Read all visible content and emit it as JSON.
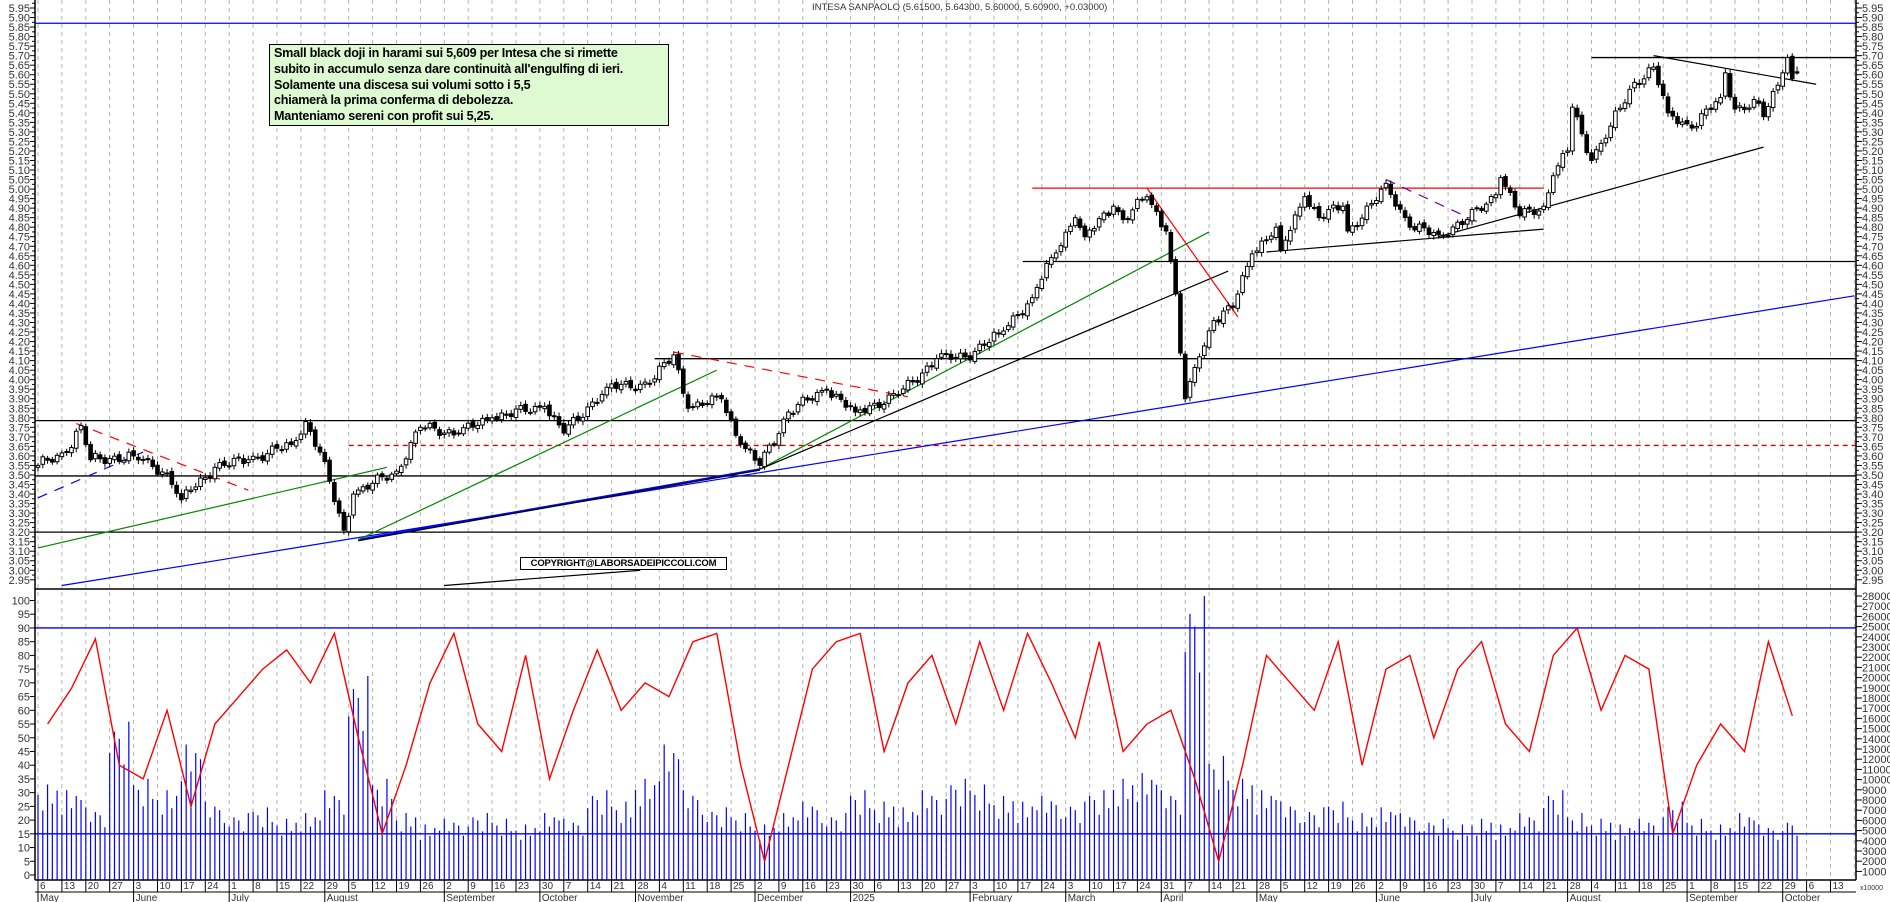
{
  "title": "INTESA SANPAOLO (5.61500, 5.64300, 5.60000, 5.60900, +0.03000)",
  "annotation": {
    "lines": [
      "Small black doji in harami sui 5,609 per Intesa che si rimette",
      "subito in accumulo senza dare continuità all'engulfing di ieri.",
      "Solamente una discesa sui volumi sotto i 5,5",
      "chiamerà la prima conferma di debolezza.",
      "Manteniamo sereni con profit sui 5,25."
    ],
    "background": "#ddfad3"
  },
  "copyright": "COPYRIGHT@LABORSADEIPICCOLI.COM",
  "volume_unit_label": "x10000",
  "chart_data": [
    {
      "type": "candlestick",
      "instrument": "INTESA SANPAOLO",
      "last_bar": {
        "open": 5.615,
        "high": 5.643,
        "low": 5.6,
        "close": 5.609,
        "change": 0.03
      },
      "price_axis": {
        "min": 2.95,
        "max": 5.95,
        "step": 0.05,
        "sides": [
          "left",
          "right"
        ]
      },
      "grid": "weekly vertical dashed",
      "up_color": "#ffffff",
      "down_color": "#000000",
      "close_keypoints": [
        [
          "2024-05-06",
          3.55
        ],
        [
          "2024-05-14",
          3.62
        ],
        [
          "2024-05-17",
          3.76
        ],
        [
          "2024-05-21",
          3.58
        ],
        [
          "2024-06-03",
          3.6
        ],
        [
          "2024-06-12",
          3.51
        ],
        [
          "2024-06-17",
          3.37
        ],
        [
          "2024-06-19",
          3.42
        ],
        [
          "2024-06-26",
          3.54
        ],
        [
          "2024-07-05",
          3.58
        ],
        [
          "2024-07-18",
          3.66
        ],
        [
          "2024-07-23",
          3.78
        ],
        [
          "2024-07-26",
          3.62
        ],
        [
          "2024-08-02",
          3.21
        ],
        [
          "2024-08-06",
          3.4
        ],
        [
          "2024-08-19",
          3.52
        ],
        [
          "2024-08-26",
          3.75
        ],
        [
          "2024-09-05",
          3.72
        ],
        [
          "2024-09-16",
          3.8
        ],
        [
          "2024-10-01",
          3.86
        ],
        [
          "2024-10-07",
          3.72
        ],
        [
          "2024-10-18",
          3.96
        ],
        [
          "2024-10-31",
          3.98
        ],
        [
          "2024-11-07",
          4.13
        ],
        [
          "2024-11-12",
          3.85
        ],
        [
          "2024-11-21",
          3.9
        ],
        [
          "2024-11-27",
          3.66
        ],
        [
          "2024-12-03",
          3.55
        ],
        [
          "2024-12-11",
          3.83
        ],
        [
          "2024-12-23",
          3.95
        ],
        [
          "2024-12-31",
          3.83
        ],
        [
          "2025-01-13",
          3.92
        ],
        [
          "2025-01-23",
          4.11
        ],
        [
          "2025-01-31",
          4.12
        ],
        [
          "2025-02-11",
          4.24
        ],
        [
          "2025-02-20",
          4.43
        ],
        [
          "2025-02-26",
          4.64
        ],
        [
          "2025-03-05",
          4.85
        ],
        [
          "2025-03-07",
          4.75
        ],
        [
          "2025-03-17",
          4.91
        ],
        [
          "2025-03-19",
          4.84
        ],
        [
          "2025-03-26",
          4.96
        ],
        [
          "2025-04-01",
          4.78
        ],
        [
          "2025-04-03",
          4.45
        ],
        [
          "2025-04-04",
          4.14
        ],
        [
          "2025-04-07",
          3.9
        ],
        [
          "2025-04-08",
          3.99
        ],
        [
          "2025-04-10",
          4.12
        ],
        [
          "2025-04-15",
          4.31
        ],
        [
          "2025-04-21",
          4.38
        ],
        [
          "2025-04-25",
          4.66
        ],
        [
          "2025-05-02",
          4.8
        ],
        [
          "2025-05-05",
          4.68
        ],
        [
          "2025-05-12",
          4.96
        ],
        [
          "2025-05-15",
          4.85
        ],
        [
          "2025-05-22",
          4.91
        ],
        [
          "2025-05-23",
          4.78
        ],
        [
          "2025-06-02",
          4.94
        ],
        [
          "2025-06-04",
          5.03
        ],
        [
          "2025-06-11",
          4.8
        ],
        [
          "2025-06-19",
          4.76
        ],
        [
          "2025-06-27",
          4.84
        ],
        [
          "2025-07-07",
          4.97
        ],
        [
          "2025-07-08",
          5.06
        ],
        [
          "2025-07-14",
          4.86
        ],
        [
          "2025-07-21",
          4.91
        ],
        [
          "2025-07-23",
          5.07
        ],
        [
          "2025-07-28",
          5.2
        ],
        [
          "2025-07-29",
          5.43
        ],
        [
          "2025-07-31",
          5.29
        ],
        [
          "2025-08-04",
          5.15
        ],
        [
          "2025-08-08",
          5.33
        ],
        [
          "2025-08-15",
          5.56
        ],
        [
          "2025-08-21",
          5.64
        ],
        [
          "2025-08-26",
          5.4
        ],
        [
          "2025-09-02",
          5.32
        ],
        [
          "2025-09-10",
          5.48
        ],
        [
          "2025-09-11",
          5.61
        ],
        [
          "2025-09-15",
          5.42
        ],
        [
          "2025-09-22",
          5.45
        ],
        [
          "2025-09-23",
          5.38
        ],
        [
          "2025-09-29",
          5.61
        ],
        [
          "2025-09-30",
          5.69
        ],
        [
          "2025-10-01",
          5.58
        ],
        [
          "2025-10-02",
          5.609
        ]
      ],
      "horizontal_lines": [
        {
          "price": 5.87,
          "color": "#0000ff"
        },
        {
          "price": 5.69,
          "color": "#000000",
          "from": "2025-08-04"
        },
        {
          "price": 5.005,
          "color": "#ff0000",
          "from": "2025-02-20",
          "to": "2025-07-21"
        },
        {
          "price": 4.62,
          "color": "#000000",
          "from": "2025-02-18"
        },
        {
          "price": 4.11,
          "color": "#000000",
          "from": "2024-11-01"
        },
        {
          "price": 3.785,
          "color": "#000000"
        },
        {
          "price": 3.655,
          "color": "#dd0000",
          "dash": true,
          "from": "2024-08-05"
        },
        {
          "price": 3.495,
          "color": "#000000"
        },
        {
          "price": 3.2,
          "color": "#000000"
        }
      ],
      "trend_lines": [
        {
          "color": "#0000ff",
          "from": [
            "2024-05-13",
            2.92
          ],
          "to": [
            "2025-10-20",
            4.44
          ]
        },
        {
          "color": "#0000ff",
          "from": [
            "2024-08-07",
            3.16
          ],
          "to": [
            "2024-12-03",
            3.53
          ],
          "width": 2
        },
        {
          "color": "#000000",
          "from": [
            "2024-08-07",
            3.155
          ],
          "to": [
            "2024-12-03",
            3.525
          ]
        },
        {
          "color": "#008800",
          "from": [
            "2024-05-06",
            3.117
          ],
          "to": [
            "2024-08-15",
            3.54
          ]
        },
        {
          "color": "#008800",
          "from": [
            "2024-08-07",
            3.16
          ],
          "to": [
            "2024-11-20",
            4.05
          ]
        },
        {
          "color": "#008800",
          "from": [
            "2024-12-03",
            3.53
          ],
          "to": [
            "2025-04-14",
            4.775
          ]
        },
        {
          "color": "#000000",
          "from": [
            "2024-12-03",
            3.53
          ],
          "to": [
            "2025-04-18",
            4.57
          ]
        },
        {
          "color": "#000000",
          "from": [
            "2024-09-02",
            2.92
          ],
          "to": [
            "2024-10-29",
            3.0
          ]
        },
        {
          "color": "#ff0000",
          "dash": true,
          "from": [
            "2024-05-16",
            3.77
          ],
          "to": [
            "2024-07-05",
            3.42
          ]
        },
        {
          "color": "#0000ff",
          "dash": true,
          "from": [
            "2024-05-06",
            3.38
          ],
          "to": [
            "2024-06-05",
            3.62
          ]
        },
        {
          "color": "#ff0000",
          "dash": true,
          "from": [
            "2024-11-07",
            4.145
          ],
          "to": [
            "2025-01-15",
            3.91
          ]
        },
        {
          "color": "#ff0000",
          "from": [
            "2025-03-26",
            5.005
          ],
          "to": [
            "2025-04-22",
            4.33
          ]
        },
        {
          "color": "#000000",
          "from": [
            "2025-04-30",
            4.67
          ],
          "to": [
            "2025-07-21",
            4.79
          ]
        },
        {
          "color": "#660099",
          "dash": true,
          "from": [
            "2025-06-04",
            5.05
          ],
          "to": [
            "2025-07-01",
            4.83
          ]
        },
        {
          "color": "#000000",
          "from": [
            "2025-06-19",
            4.75
          ],
          "to": [
            "2025-09-23",
            5.22
          ]
        },
        {
          "color": "#000000",
          "from": [
            "2025-08-21",
            5.7
          ],
          "to": [
            "2025-10-08",
            5.55
          ]
        }
      ]
    },
    {
      "type": "line+bar",
      "oscillator": {
        "axis": {
          "min": 0,
          "max": 100,
          "step": 5,
          "side": "left"
        },
        "color": "#ff0000",
        "levels": [
          {
            "value": 90,
            "color": "#0000ff"
          },
          {
            "value": 15,
            "color": "#0000ff"
          }
        ],
        "weekly_start": "2024-05-06",
        "weekly_values": [
          55,
          68,
          86,
          40,
          35,
          60,
          25,
          55,
          65,
          75,
          82,
          70,
          88,
          50,
          15,
          40,
          70,
          88,
          55,
          45,
          80,
          35,
          60,
          82,
          60,
          70,
          65,
          85,
          88,
          40,
          5,
          40,
          75,
          85,
          88,
          45,
          70,
          80,
          55,
          85,
          60,
          88,
          70,
          50,
          85,
          45,
          55,
          60,
          35,
          5,
          40,
          80,
          70,
          60,
          85,
          40,
          75,
          80,
          50,
          75,
          85,
          55,
          45,
          80,
          90,
          60,
          80,
          75,
          15,
          40,
          55,
          45,
          85,
          58
        ]
      },
      "volume": {
        "axis": {
          "min": 1000,
          "max": 28000,
          "step": 1000,
          "side": "right"
        },
        "color": "#0000ff",
        "weekly_start": "2024-05-06",
        "weekly_values": [
          8500,
          8000,
          6500,
          14000,
          9000,
          8000,
          12000,
          7000,
          6000,
          6500,
          5500,
          6000,
          8000,
          18000,
          9000,
          6000,
          5000,
          5500,
          6000,
          5500,
          5000,
          6000,
          5500,
          8000,
          7000,
          9000,
          12000,
          8000,
          6500,
          6000,
          5000,
          6000,
          7000,
          6000,
          8000,
          7000,
          6500,
          8000,
          9000,
          8500,
          7500,
          7000,
          7500,
          7000,
          8000,
          9000,
          9500,
          8000,
          25000,
          11000,
          9000,
          8000,
          7000,
          6500,
          7000,
          6000,
          6500,
          6000,
          5500,
          5000,
          5500,
          5000,
          6000,
          8000,
          6000,
          5500,
          5000,
          5500,
          7000,
          5500,
          5000,
          6000,
          5000,
          5500
        ]
      }
    }
  ],
  "x_axis": {
    "week_start": "2024-05-06",
    "day_ticks": [
      6,
      13,
      20,
      27,
      3,
      10,
      17,
      24,
      1,
      8,
      15,
      22,
      29,
      5,
      12,
      19,
      26,
      2,
      9,
      16,
      23,
      30,
      7,
      14,
      21,
      28,
      4,
      11,
      18,
      25,
      2,
      9,
      16,
      23,
      30,
      6,
      13,
      20,
      27,
      3,
      10,
      17,
      24,
      3,
      10,
      17,
      24,
      31,
      7,
      14,
      21,
      28,
      5,
      12,
      19,
      26,
      2,
      9,
      16,
      23,
      30,
      7,
      14,
      21,
      28,
      4,
      11,
      18,
      25,
      1,
      8,
      15,
      22,
      29,
      6,
      13
    ],
    "months": [
      {
        "label": "May",
        "start": "2024-05-06"
      },
      {
        "label": "June",
        "start": "2024-06-03"
      },
      {
        "label": "July",
        "start": "2024-07-01"
      },
      {
        "label": "August",
        "start": "2024-08-01"
      },
      {
        "label": "September",
        "start": "2024-09-02"
      },
      {
        "label": "October",
        "start": "2024-10-01"
      },
      {
        "label": "November",
        "start": "2024-11-01"
      },
      {
        "label": "December",
        "start": "2024-12-02"
      },
      {
        "label": "2025",
        "start": "2025-01-02"
      },
      {
        "label": "February",
        "start": "2025-02-03"
      },
      {
        "label": "March",
        "start": "2025-03-03"
      },
      {
        "label": "April",
        "start": "2025-04-01"
      },
      {
        "label": "May",
        "start": "2025-05-02"
      },
      {
        "label": "June",
        "start": "2025-06-02"
      },
      {
        "label": "July",
        "start": "2025-07-01"
      },
      {
        "label": "August",
        "start": "2025-08-01"
      },
      {
        "label": "September",
        "start": "2025-09-01"
      },
      {
        "label": "October",
        "start": "2025-10-01"
      }
    ]
  }
}
